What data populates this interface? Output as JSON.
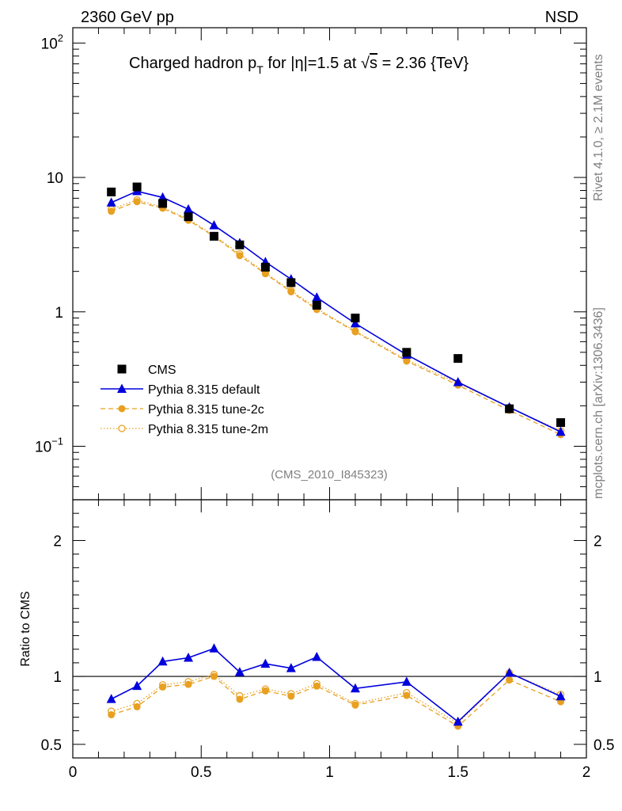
{
  "header": {
    "left": "2360 GeV pp",
    "right": "NSD"
  },
  "side_text": {
    "rivet": "Rivet 4.1.0, ≥ 2.1M events",
    "mcplots": "mcplots.cern.ch [arXiv:1306.3436]"
  },
  "analysis_id": "(CMS_2010_I845323)",
  "colors": {
    "data": "#000000",
    "default": "#0000dd",
    "tune": "#e8a020",
    "ref_line": "#000000"
  },
  "chart_data": {
    "type": "line",
    "title": "Charged hadron p_T for |η|=1.5 at √s = 2.36 {TeV}",
    "title_parts": {
      "a": "Charged hadron p",
      "sub": "T",
      "b": " for |η|=1.5 at ",
      "sqrt": "√",
      "s": "s",
      "c": " = 2.36 {TeV}"
    },
    "xlim": [
      0,
      2
    ],
    "ylim_main": [
      0.04,
      130
    ],
    "ylim_ratio": [
      0.4,
      2.3
    ],
    "yscale_main": "log",
    "ylabel_ratio": "Ratio to CMS",
    "x_ticks": [
      {
        "v": 0,
        "label": "0"
      },
      {
        "v": 0.5,
        "label": "0.5"
      },
      {
        "v": 1,
        "label": "1"
      },
      {
        "v": 1.5,
        "label": "1.5"
      },
      {
        "v": 2,
        "label": "2"
      }
    ],
    "y_ticks_main": [
      {
        "v": 0.1,
        "base": "10",
        "exp": "−1"
      },
      {
        "v": 1,
        "base": "1",
        "exp": ""
      },
      {
        "v": 10,
        "base": "10",
        "exp": ""
      },
      {
        "v": 100,
        "base": "10",
        "exp": "2"
      }
    ],
    "y_ticks_ratio": [
      {
        "v": 0.5,
        "label": "0.5"
      },
      {
        "v": 1,
        "label": "1"
      },
      {
        "v": 2,
        "label": "2"
      }
    ],
    "legend_position": "middle-left",
    "x": [
      0.15,
      0.25,
      0.35,
      0.45,
      0.55,
      0.65,
      0.75,
      0.85,
      0.95,
      1.1,
      1.3,
      1.5,
      1.7,
      1.9
    ],
    "series": [
      {
        "id": "cms",
        "name": "CMS",
        "style": "square",
        "values": [
          7.8,
          8.5,
          6.4,
          5.1,
          3.65,
          3.15,
          2.15,
          1.65,
          1.12,
          0.9,
          0.5,
          0.45,
          0.19,
          0.15
        ]
      },
      {
        "id": "default",
        "name": "Pythia 8.315 default",
        "style": "triangle-solid",
        "values": [
          6.5,
          7.9,
          7.1,
          5.8,
          4.4,
          3.25,
          2.35,
          1.75,
          1.28,
          0.82,
          0.48,
          0.3,
          0.195,
          0.128
        ]
      },
      {
        "id": "tune2c",
        "name": "Pythia 8.315 tune-2c",
        "style": "circle-filled-dashed",
        "values": [
          5.6,
          6.6,
          5.9,
          4.8,
          3.65,
          2.62,
          1.92,
          1.41,
          1.04,
          0.71,
          0.43,
          0.285,
          0.185,
          0.122
        ]
      },
      {
        "id": "tune2m",
        "name": "Pythia 8.315 tune-2m",
        "style": "circle-open-dotted",
        "values": [
          5.8,
          6.8,
          6.0,
          4.9,
          3.7,
          2.7,
          1.95,
          1.44,
          1.06,
          0.72,
          0.44,
          0.295,
          0.195,
          0.13
        ]
      }
    ]
  }
}
